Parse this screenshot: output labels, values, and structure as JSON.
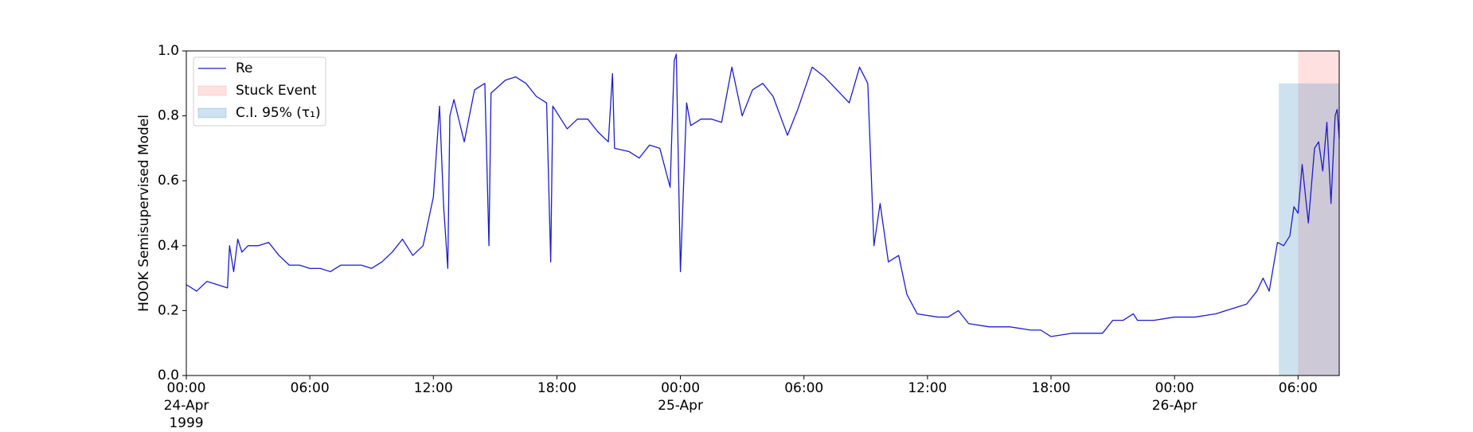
{
  "chart_data": {
    "type": "line",
    "ylabel": "HOOK Semisupervised Model",
    "x": [
      "1999-04-24 00:00",
      "1999-04-24 00:30",
      "1999-04-24 01:00",
      "1999-04-24 01:30",
      "1999-04-24 02:00",
      "1999-04-24 02:06",
      "1999-04-24 02:18",
      "1999-04-24 02:30",
      "1999-04-24 02:42",
      "1999-04-24 03:00",
      "1999-04-24 03:30",
      "1999-04-24 04:00",
      "1999-04-24 04:30",
      "1999-04-24 05:00",
      "1999-04-24 05:30",
      "1999-04-24 06:00",
      "1999-04-24 06:30",
      "1999-04-24 07:00",
      "1999-04-24 07:30",
      "1999-04-24 08:00",
      "1999-04-24 08:30",
      "1999-04-24 09:00",
      "1999-04-24 09:30",
      "1999-04-24 10:00",
      "1999-04-24 10:30",
      "1999-04-24 11:00",
      "1999-04-24 11:30",
      "1999-04-24 12:00",
      "1999-04-24 12:18",
      "1999-04-24 12:30",
      "1999-04-24 12:42",
      "1999-04-24 12:48",
      "1999-04-24 13:00",
      "1999-04-24 13:30",
      "1999-04-24 14:00",
      "1999-04-24 14:30",
      "1999-04-24 14:42",
      "1999-04-24 14:48",
      "1999-04-24 15:30",
      "1999-04-24 16:00",
      "1999-04-24 16:30",
      "1999-04-24 17:00",
      "1999-04-24 17:30",
      "1999-04-24 17:42",
      "1999-04-24 17:48",
      "1999-04-24 18:30",
      "1999-04-24 19:00",
      "1999-04-24 19:30",
      "1999-04-24 20:00",
      "1999-04-24 20:30",
      "1999-04-24 20:42",
      "1999-04-24 20:48",
      "1999-04-24 21:30",
      "1999-04-24 22:00",
      "1999-04-24 22:30",
      "1999-04-24 23:00",
      "1999-04-24 23:30",
      "1999-04-24 23:42",
      "1999-04-24 23:48",
      "1999-04-25 00:00",
      "1999-04-25 00:18",
      "1999-04-25 00:30",
      "1999-04-25 01:00",
      "1999-04-25 01:30",
      "1999-04-25 02:00",
      "1999-04-25 02:30",
      "1999-04-25 03:00",
      "1999-04-25 03:30",
      "1999-04-25 04:00",
      "1999-04-25 04:30",
      "1999-04-25 05:12",
      "1999-04-25 05:42",
      "1999-04-25 06:24",
      "1999-04-25 07:00",
      "1999-04-25 07:36",
      "1999-04-25 08:12",
      "1999-04-25 08:42",
      "1999-04-25 09:06",
      "1999-04-25 09:24",
      "1999-04-25 09:42",
      "1999-04-25 10:06",
      "1999-04-25 10:36",
      "1999-04-25 11:00",
      "1999-04-25 11:30",
      "1999-04-25 12:30",
      "1999-04-25 13:00",
      "1999-04-25 13:30",
      "1999-04-25 14:00",
      "1999-04-25 15:00",
      "1999-04-25 16:00",
      "1999-04-25 17:00",
      "1999-04-25 17:30",
      "1999-04-25 18:00",
      "1999-04-25 19:00",
      "1999-04-25 20:00",
      "1999-04-25 20:30",
      "1999-04-25 21:00",
      "1999-04-25 21:30",
      "1999-04-25 22:00",
      "1999-04-25 22:12",
      "1999-04-25 23:00",
      "1999-04-26 00:00",
      "1999-04-26 01:00",
      "1999-04-26 02:00",
      "1999-04-26 02:30",
      "1999-04-26 03:00",
      "1999-04-26 03:30",
      "1999-04-26 04:00",
      "1999-04-26 04:18",
      "1999-04-26 04:36",
      "1999-04-26 05:00",
      "1999-04-26 05:18",
      "1999-04-26 05:36",
      "1999-04-26 05:48",
      "1999-04-26 06:00",
      "1999-04-26 06:12",
      "1999-04-26 06:30",
      "1999-04-26 06:48",
      "1999-04-26 07:00",
      "1999-04-26 07:12",
      "1999-04-26 07:24",
      "1999-04-26 07:36",
      "1999-04-26 07:48",
      "1999-04-26 07:54",
      "1999-04-26 08:00"
    ],
    "series": [
      {
        "name": "Re",
        "color": "#1c1cd0",
        "values": [
          0.28,
          0.26,
          0.29,
          0.28,
          0.27,
          0.4,
          0.32,
          0.42,
          0.38,
          0.4,
          0.4,
          0.41,
          0.37,
          0.34,
          0.34,
          0.33,
          0.33,
          0.32,
          0.34,
          0.34,
          0.34,
          0.33,
          0.35,
          0.38,
          0.42,
          0.37,
          0.4,
          0.55,
          0.83,
          0.52,
          0.33,
          0.8,
          0.85,
          0.72,
          0.88,
          0.9,
          0.4,
          0.87,
          0.91,
          0.92,
          0.9,
          0.86,
          0.84,
          0.35,
          0.83,
          0.76,
          0.79,
          0.79,
          0.75,
          0.72,
          0.93,
          0.7,
          0.69,
          0.67,
          0.71,
          0.7,
          0.58,
          0.97,
          0.99,
          0.32,
          0.84,
          0.77,
          0.79,
          0.79,
          0.78,
          0.95,
          0.8,
          0.88,
          0.9,
          0.86,
          0.74,
          0.82,
          0.95,
          0.92,
          0.88,
          0.84,
          0.95,
          0.9,
          0.4,
          0.53,
          0.35,
          0.37,
          0.25,
          0.19,
          0.18,
          0.18,
          0.2,
          0.16,
          0.15,
          0.15,
          0.14,
          0.14,
          0.12,
          0.13,
          0.13,
          0.13,
          0.17,
          0.17,
          0.19,
          0.17,
          0.17,
          0.18,
          0.18,
          0.19,
          0.2,
          0.21,
          0.22,
          0.26,
          0.3,
          0.26,
          0.41,
          0.4,
          0.43,
          0.52,
          0.5,
          0.65,
          0.47,
          0.7,
          0.72,
          0.63,
          0.78,
          0.53,
          0.8,
          0.82,
          0.73
        ]
      }
    ],
    "regions": [
      {
        "name": "Stuck Event",
        "color": "#ff0000",
        "opacity": 0.12,
        "x0": "1999-04-26 06:00",
        "x1": "1999-04-26 08:00",
        "y0": 0,
        "y1": 1
      },
      {
        "name": "C.I. 95% (τ₁)",
        "color": "#1f77b4",
        "opacity": 0.22,
        "x0": "1999-04-26 05:04",
        "x1": "1999-04-26 08:00",
        "y0": 0,
        "y1": 0.9
      }
    ],
    "xlim": [
      "1999-04-24 00:00",
      "1999-04-26 08:00"
    ],
    "xticks": [
      {
        "value": "1999-04-24 00:00",
        "label": "00:00\n24-Apr\n1999"
      },
      {
        "value": "1999-04-24 06:00",
        "label": "06:00"
      },
      {
        "value": "1999-04-24 12:00",
        "label": "12:00"
      },
      {
        "value": "1999-04-24 18:00",
        "label": "18:00"
      },
      {
        "value": "1999-04-25 00:00",
        "label": "00:00\n25-Apr"
      },
      {
        "value": "1999-04-25 06:00",
        "label": "06:00"
      },
      {
        "value": "1999-04-25 12:00",
        "label": "12:00"
      },
      {
        "value": "1999-04-25 18:00",
        "label": "18:00"
      },
      {
        "value": "1999-04-26 00:00",
        "label": "00:00\n26-Apr"
      },
      {
        "value": "1999-04-26 06:00",
        "label": "06:00"
      }
    ],
    "ylim": [
      0,
      1
    ],
    "yticks": [
      {
        "value": 0,
        "label": "0.0"
      },
      0.2,
      0.4,
      0.6,
      0.8,
      {
        "value": 1,
        "label": "1.0"
      }
    ],
    "legend": "upper left"
  }
}
